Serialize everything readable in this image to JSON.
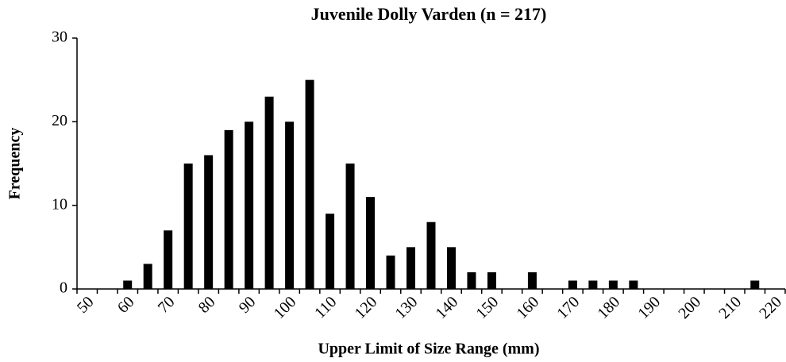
{
  "chart_data": {
    "type": "bar",
    "title": "Juvenile Dolly Varden (n = 217)",
    "x_label": "Upper Limit of Size Range (mm)",
    "y_label": "Frequency",
    "categories": [
      50,
      null,
      60,
      null,
      70,
      null,
      80,
      null,
      90,
      null,
      100,
      null,
      110,
      null,
      120,
      null,
      130,
      null,
      140,
      null,
      150,
      null,
      160,
      null,
      170,
      null,
      180,
      null,
      190,
      null,
      200,
      null,
      210,
      null,
      220
    ],
    "values": [
      0,
      0,
      1,
      3,
      7,
      15,
      16,
      19,
      20,
      23,
      20,
      25,
      9,
      15,
      11,
      4,
      5,
      8,
      5,
      2,
      2,
      0,
      2,
      0,
      1,
      1,
      1,
      1,
      0,
      0,
      0,
      0,
      0,
      1,
      0
    ],
    "color": "#000000",
    "ylim": [
      0,
      30
    ],
    "yticks": [
      0,
      10,
      20,
      30
    ],
    "grid": false
  }
}
